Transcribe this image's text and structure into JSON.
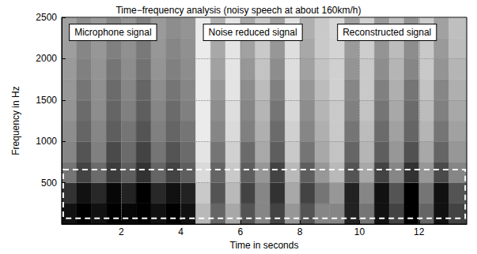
{
  "chart_data": {
    "type": "spectrogram",
    "title": "Time−frequency analysis (noisy speech at about 160km/h)",
    "x_label": "Time in seconds",
    "y_label": "Frequency in Hz",
    "xlim": [
      0,
      13.6
    ],
    "ylim": [
      0,
      2500
    ],
    "xticks": [
      2,
      4,
      6,
      8,
      10,
      12
    ],
    "yticks": [
      500,
      1000,
      1500,
      2000,
      2500
    ],
    "grid": true,
    "segments": [
      {
        "label": "Microphone signal",
        "x": [
          0,
          4.5
        ]
      },
      {
        "label": "Noise reduced signal",
        "x": [
          4.5,
          9
        ]
      },
      {
        "label": "Reconstructed signal",
        "x": [
          9,
          13.6
        ]
      }
    ],
    "highlight_box": {
      "x": [
        0.05,
        13.55
      ],
      "y": [
        70,
        660
      ]
    },
    "cells": {
      "x_edges": [
        0,
        0.5,
        1,
        1.5,
        2,
        2.5,
        3,
        3.5,
        4,
        4.5,
        5,
        5.5,
        6,
        6.5,
        7,
        7.5,
        8,
        8.5,
        9,
        9.5,
        10,
        10.5,
        11,
        11.5,
        12,
        12.5,
        13,
        13.6
      ],
      "y_edges": [
        0,
        250,
        500,
        750,
        1000,
        1250,
        1500,
        1750,
        2000,
        2250,
        2500
      ],
      "values": [
        [
          0.85,
          0.9,
          0.85,
          0.9,
          0.88,
          0.9,
          0.85,
          0.9,
          0.85,
          0.35,
          0.6,
          0.4,
          0.65,
          0.5,
          0.7,
          0.45,
          0.65,
          0.5,
          0.5,
          0.8,
          0.55,
          0.85,
          0.7,
          0.9,
          0.6,
          0.85,
          0.7
        ],
        [
          0.75,
          0.85,
          0.78,
          0.88,
          0.8,
          0.9,
          0.78,
          0.85,
          0.8,
          0.3,
          0.65,
          0.35,
          0.7,
          0.5,
          0.75,
          0.4,
          0.7,
          0.55,
          0.45,
          0.8,
          0.5,
          0.85,
          0.65,
          0.9,
          0.55,
          0.85,
          0.65
        ],
        [
          0.55,
          0.7,
          0.58,
          0.72,
          0.62,
          0.75,
          0.6,
          0.7,
          0.62,
          0.25,
          0.6,
          0.3,
          0.62,
          0.45,
          0.7,
          0.35,
          0.62,
          0.45,
          0.35,
          0.65,
          0.4,
          0.7,
          0.5,
          0.75,
          0.45,
          0.68,
          0.5
        ],
        [
          0.5,
          0.65,
          0.52,
          0.68,
          0.58,
          0.7,
          0.55,
          0.65,
          0.58,
          0.22,
          0.55,
          0.28,
          0.58,
          0.4,
          0.62,
          0.3,
          0.55,
          0.4,
          0.32,
          0.6,
          0.36,
          0.62,
          0.45,
          0.66,
          0.4,
          0.6,
          0.45
        ],
        [
          0.48,
          0.6,
          0.5,
          0.62,
          0.55,
          0.65,
          0.52,
          0.6,
          0.55,
          0.2,
          0.5,
          0.25,
          0.52,
          0.38,
          0.58,
          0.28,
          0.5,
          0.38,
          0.3,
          0.55,
          0.34,
          0.58,
          0.42,
          0.6,
          0.36,
          0.55,
          0.42
        ],
        [
          0.46,
          0.58,
          0.48,
          0.6,
          0.52,
          0.62,
          0.5,
          0.58,
          0.52,
          0.2,
          0.48,
          0.24,
          0.5,
          0.36,
          0.55,
          0.26,
          0.48,
          0.36,
          0.3,
          0.52,
          0.32,
          0.55,
          0.4,
          0.58,
          0.34,
          0.52,
          0.4
        ],
        [
          0.45,
          0.55,
          0.47,
          0.58,
          0.5,
          0.6,
          0.48,
          0.55,
          0.5,
          0.2,
          0.45,
          0.22,
          0.48,
          0.34,
          0.52,
          0.25,
          0.45,
          0.34,
          0.28,
          0.5,
          0.3,
          0.52,
          0.38,
          0.55,
          0.32,
          0.5,
          0.38
        ],
        [
          0.44,
          0.52,
          0.46,
          0.55,
          0.48,
          0.56,
          0.46,
          0.52,
          0.48,
          0.2,
          0.42,
          0.22,
          0.45,
          0.32,
          0.48,
          0.24,
          0.42,
          0.32,
          0.28,
          0.46,
          0.3,
          0.48,
          0.36,
          0.5,
          0.3,
          0.46,
          0.36
        ],
        [
          0.43,
          0.5,
          0.45,
          0.52,
          0.47,
          0.54,
          0.45,
          0.5,
          0.47,
          0.2,
          0.4,
          0.22,
          0.42,
          0.3,
          0.45,
          0.24,
          0.4,
          0.3,
          0.27,
          0.44,
          0.29,
          0.46,
          0.34,
          0.48,
          0.3,
          0.44,
          0.34
        ],
        [
          0.42,
          0.48,
          0.44,
          0.5,
          0.46,
          0.52,
          0.44,
          0.48,
          0.46,
          0.2,
          0.38,
          0.22,
          0.4,
          0.3,
          0.42,
          0.23,
          0.38,
          0.3,
          0.26,
          0.42,
          0.28,
          0.44,
          0.33,
          0.46,
          0.29,
          0.42,
          0.33
        ]
      ]
    }
  }
}
